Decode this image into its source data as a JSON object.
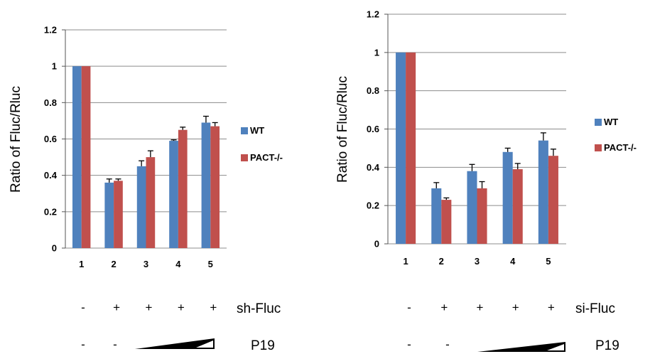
{
  "chart_data": [
    {
      "type": "bar",
      "ylabel": "Ratio of Fluc/Rluc",
      "categories": [
        "1",
        "2",
        "3",
        "4",
        "5"
      ],
      "ylim": [
        0,
        1.2
      ],
      "yticks": [
        "0",
        "0.2",
        "0.4",
        "0.6",
        "0.8",
        "1",
        "1.2"
      ],
      "grid": true,
      "legend_position": "right",
      "series": [
        {
          "name": "WT",
          "color": "#4F81BD",
          "values": [
            1.0,
            0.36,
            0.45,
            0.59,
            0.69
          ],
          "errors": [
            0,
            0.02,
            0.03,
            0.005,
            0.035
          ]
        },
        {
          "name": "PACT-/-",
          "color": "#C0504D",
          "values": [
            1.0,
            0.37,
            0.5,
            0.65,
            0.67
          ],
          "errors": [
            0,
            0.01,
            0.035,
            0.015,
            0.02
          ]
        }
      ],
      "condition_rows": [
        {
          "label": "sh-Fluc",
          "signs": [
            "-",
            "+",
            "+",
            "+",
            "+"
          ]
        },
        {
          "label": "P19",
          "signs": [
            "-",
            "-"
          ],
          "gradient": true
        }
      ]
    },
    {
      "type": "bar",
      "ylabel": "Ratio of Fluc/Rluc",
      "categories": [
        "1",
        "2",
        "3",
        "4",
        "5"
      ],
      "ylim": [
        0,
        1.2
      ],
      "yticks": [
        "0",
        "0.2",
        "0.4",
        "0.6",
        "0.8",
        "1",
        "1.2"
      ],
      "grid": true,
      "legend_position": "right",
      "series": [
        {
          "name": "WT",
          "color": "#4F81BD",
          "values": [
            1.0,
            0.29,
            0.38,
            0.48,
            0.54
          ],
          "errors": [
            0,
            0.03,
            0.035,
            0.02,
            0.04
          ]
        },
        {
          "name": "PACT-/-",
          "color": "#C0504D",
          "values": [
            1.0,
            0.23,
            0.29,
            0.39,
            0.46
          ],
          "errors": [
            0,
            0.01,
            0.035,
            0.03,
            0.035
          ]
        }
      ],
      "condition_rows": [
        {
          "label": "si-Fluc",
          "signs": [
            "-",
            "+",
            "+",
            "+",
            "+"
          ]
        },
        {
          "label": "P19",
          "signs": [
            "-",
            "-"
          ],
          "gradient": true
        }
      ]
    }
  ]
}
